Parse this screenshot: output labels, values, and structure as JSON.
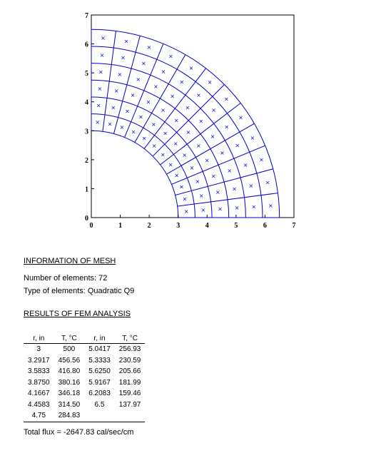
{
  "chart_data": {
    "type": "mesh",
    "r_inner": 3,
    "r_outer": 6.5,
    "radial_divisions": 6,
    "angular_divisions": 12,
    "xlim": [
      0,
      7
    ],
    "ylim": [
      0,
      7
    ],
    "x_ticks": [
      "0",
      "1",
      "2",
      "3",
      "4",
      "5",
      "6",
      "7"
    ],
    "y_ticks": [
      "0",
      "1",
      "2",
      "3",
      "4",
      "5",
      "6",
      "7"
    ],
    "marker": "×",
    "colors": {
      "mesh": "#0000cc",
      "axes": "#000000"
    }
  },
  "mesh_info": {
    "heading": "INFORMATION OF MESH",
    "elements_line": "Number of elements: 72",
    "type_line": "Type of elements: Quadratic Q9"
  },
  "results": {
    "heading": "RESULTS OF FEM ANALYSIS",
    "columns": [
      "r, in",
      "T, °C",
      "r, in",
      "T, °C"
    ],
    "rows": [
      [
        "3",
        "500",
        "5.0417",
        "256.93"
      ],
      [
        "3.2917",
        "456.56",
        "5.3333",
        "230.59"
      ],
      [
        "3.5833",
        "416.80",
        "5.6250",
        "205.66"
      ],
      [
        "3.8750",
        "380.16",
        "5.9167",
        "181.99"
      ],
      [
        "4.1667",
        "346.18",
        "6.2083",
        "159.46"
      ],
      [
        "4.4583",
        "314.50",
        "6.5",
        "137.97"
      ],
      [
        "4.75",
        "284.83",
        "",
        ""
      ]
    ],
    "total_flux": "Total flux = -2647.83 cal/sec/cm"
  }
}
